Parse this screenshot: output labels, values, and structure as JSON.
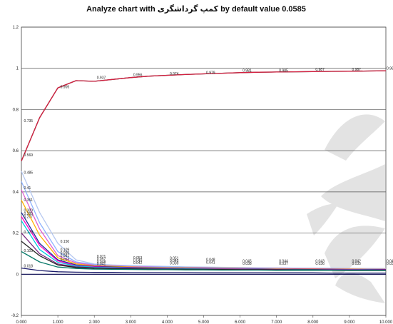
{
  "chart_data": {
    "type": "line",
    "title": "Analyze chart with کمپ گرداشگری by default value 0.0585",
    "xlabel": "",
    "ylabel": "",
    "x_ticks": [
      "0.000",
      "1.000",
      "2.000",
      "3.000",
      "4.000",
      "5.000",
      "6.000",
      "7.000",
      "8.000",
      "9.000",
      "10.000"
    ],
    "y_ticks": [
      "1.2",
      "1",
      "0.8",
      "0.6",
      "0.4",
      "0.2",
      "0",
      "-0.2"
    ],
    "xlim": [
      0,
      10
    ],
    "ylim": [
      -0.2,
      1.2
    ],
    "grid": "horizontal",
    "legend": "none",
    "series": [
      {
        "color": "#222222",
        "x": [
          0,
          0.5,
          1,
          1.5,
          2,
          2.5,
          3,
          3.5,
          4,
          4.5,
          5,
          5.5,
          6,
          6.5,
          7,
          7.5,
          8,
          8.5,
          9,
          9.5,
          10
        ],
        "y": [
          0.55,
          0.76,
          0.905,
          0.94,
          0.937,
          0.946,
          0.955,
          0.962,
          0.966,
          0.97,
          0.973,
          0.976,
          0.979,
          0.981,
          0.982,
          0.983,
          0.984,
          0.985,
          0.986,
          0.987,
          0.988
        ]
      },
      {
        "color": "#d62040",
        "x": [
          0,
          0.5,
          1,
          1.5,
          2,
          2.5,
          3,
          3.5,
          4,
          4.5,
          5,
          5.5,
          6,
          6.5,
          7,
          7.5,
          8,
          8.5,
          9,
          9.5,
          10
        ],
        "y": [
          0.55,
          0.76,
          0.905,
          0.94,
          0.937,
          0.946,
          0.955,
          0.962,
          0.966,
          0.97,
          0.973,
          0.976,
          0.979,
          0.981,
          0.982,
          0.983,
          0.984,
          0.985,
          0.986,
          0.987,
          0.988
        ]
      },
      {
        "color": "#b6c8f0",
        "x": [
          0,
          0.5,
          1,
          1.5,
          2,
          2.5,
          3,
          3.5,
          4,
          4.5,
          5,
          5.5,
          6,
          6.5,
          7,
          7.5,
          8,
          8.5,
          9,
          9.5,
          10
        ],
        "y": [
          0.5,
          0.3,
          0.15,
          0.07,
          0.05,
          0.045,
          0.042,
          0.04,
          0.038,
          0.036,
          0.035,
          0.034,
          0.033,
          0.032,
          0.031,
          0.03,
          0.03,
          0.029,
          0.029,
          0.028,
          0.028
        ]
      },
      {
        "color": "#8fb3ff",
        "x": [
          0,
          0.5,
          1,
          1.5,
          2,
          2.5,
          3,
          3.5,
          4,
          4.5,
          5,
          5.5,
          6,
          6.5,
          7,
          7.5,
          8,
          8.5,
          9,
          9.5,
          10
        ],
        "y": [
          0.45,
          0.25,
          0.11,
          0.06,
          0.047,
          0.042,
          0.039,
          0.037,
          0.035,
          0.034,
          0.033,
          0.032,
          0.031,
          0.03,
          0.029,
          0.029,
          0.028,
          0.028,
          0.027,
          0.027,
          0.026
        ]
      },
      {
        "color": "#e060d0",
        "x": [
          0,
          0.5,
          1,
          1.5,
          2,
          2.5,
          3,
          3.5,
          4,
          4.5,
          5,
          5.5,
          6,
          6.5,
          7,
          7.5,
          8,
          8.5,
          9,
          9.5,
          10
        ],
        "y": [
          0.41,
          0.22,
          0.09,
          0.055,
          0.044,
          0.04,
          0.037,
          0.035,
          0.033,
          0.032,
          0.031,
          0.03,
          0.029,
          0.028,
          0.028,
          0.027,
          0.027,
          0.026,
          0.026,
          0.025,
          0.025
        ]
      },
      {
        "color": "#ffb000",
        "x": [
          0,
          0.5,
          1,
          1.5,
          2,
          2.5,
          3,
          3.5,
          4,
          4.5,
          5,
          5.5,
          6,
          6.5,
          7,
          7.5,
          8,
          8.5,
          9,
          9.5,
          10
        ],
        "y": [
          0.36,
          0.19,
          0.08,
          0.05,
          0.041,
          0.038,
          0.035,
          0.033,
          0.032,
          0.031,
          0.03,
          0.029,
          0.028,
          0.027,
          0.027,
          0.026,
          0.026,
          0.025,
          0.025,
          0.024,
          0.024
        ]
      },
      {
        "color": "#1f2d9a",
        "x": [
          0,
          0.5,
          1,
          1.5,
          2,
          2.5,
          3,
          3.5,
          4,
          4.5,
          5,
          5.5,
          6,
          6.5,
          7,
          7.5,
          8,
          8.5,
          9,
          9.5,
          10
        ],
        "y": [
          0.3,
          0.15,
          0.07,
          0.045,
          0.038,
          0.035,
          0.033,
          0.031,
          0.03,
          0.029,
          0.028,
          0.027,
          0.026,
          0.026,
          0.025,
          0.025,
          0.024,
          0.024,
          0.023,
          0.023,
          0.023
        ]
      },
      {
        "color": "#ff00c8",
        "x": [
          0,
          0.5,
          1,
          1.5,
          2,
          2.5,
          3,
          3.5,
          4,
          4.5,
          5,
          5.5,
          6,
          6.5,
          7,
          7.5,
          8,
          8.5,
          9,
          9.5,
          10
        ],
        "y": [
          0.28,
          0.14,
          0.065,
          0.042,
          0.036,
          0.033,
          0.031,
          0.03,
          0.029,
          0.028,
          0.027,
          0.026,
          0.026,
          0.025,
          0.025,
          0.024,
          0.024,
          0.023,
          0.023,
          0.022,
          0.022
        ]
      },
      {
        "color": "#00c8e0",
        "x": [
          0,
          0.5,
          1,
          1.5,
          2,
          2.5,
          3,
          3.5,
          4,
          4.5,
          5,
          5.5,
          6,
          6.5,
          7,
          7.5,
          8,
          8.5,
          9,
          9.5,
          10
        ],
        "y": [
          0.26,
          0.12,
          0.058,
          0.04,
          0.034,
          0.032,
          0.03,
          0.029,
          0.028,
          0.027,
          0.026,
          0.025,
          0.025,
          0.024,
          0.024,
          0.023,
          0.023,
          0.022,
          0.022,
          0.022,
          0.021
        ]
      },
      {
        "color": "#7a2a80",
        "x": [
          0,
          0.5,
          1,
          1.5,
          2,
          2.5,
          3,
          3.5,
          4,
          4.5,
          5,
          5.5,
          6,
          6.5,
          7,
          7.5,
          8,
          8.5,
          9,
          9.5,
          10
        ],
        "y": [
          0.2,
          0.1,
          0.05,
          0.036,
          0.031,
          0.029,
          0.028,
          0.027,
          0.026,
          0.025,
          0.025,
          0.024,
          0.024,
          0.023,
          0.023,
          0.022,
          0.022,
          0.022,
          0.021,
          0.021,
          0.021
        ]
      },
      {
        "color": "#222222",
        "x": [
          0,
          0.5,
          1,
          1.5,
          2,
          2.5,
          3,
          3.5,
          4,
          4.5,
          5,
          5.5,
          6,
          6.5,
          7,
          7.5,
          8,
          8.5,
          9,
          9.5,
          10
        ],
        "y": [
          0.16,
          0.09,
          0.045,
          0.033,
          0.029,
          0.027,
          0.026,
          0.025,
          0.024,
          0.024,
          0.023,
          0.023,
          0.022,
          0.022,
          0.021,
          0.021,
          0.021,
          0.02,
          0.02,
          0.02,
          0.02
        ]
      },
      {
        "color": "#0a7a6a",
        "x": [
          0,
          0.5,
          1,
          1.5,
          2,
          2.5,
          3,
          3.5,
          4,
          4.5,
          5,
          5.5,
          6,
          6.5,
          7,
          7.5,
          8,
          8.5,
          9,
          9.5,
          10
        ],
        "y": [
          0.11,
          0.06,
          0.035,
          0.028,
          0.025,
          0.024,
          0.023,
          0.022,
          0.022,
          0.021,
          0.021,
          0.02,
          0.02,
          0.02,
          0.019,
          0.019,
          0.019,
          0.019,
          0.018,
          0.018,
          0.018
        ]
      },
      {
        "color": "#1a1a6a",
        "x": [
          0,
          0.5,
          1,
          1.5,
          2,
          2.5,
          3,
          3.5,
          4,
          4.5,
          5,
          5.5,
          6,
          6.5,
          7,
          7.5,
          8,
          8.5,
          9,
          9.5,
          10
        ],
        "y": [
          0.03,
          0.018,
          0.012,
          0.01,
          0.009,
          0.009,
          0.008,
          0.008,
          0.008,
          0.008,
          0.007,
          0.007,
          0.007,
          0.007,
          0.007,
          0.007,
          0.007,
          0.006,
          0.006,
          0.006,
          0.006
        ]
      }
    ],
    "data_labels": [
      {
        "x": 0.05,
        "y": 0.735,
        "text": "0.735"
      },
      {
        "x": 0.05,
        "y": 0.569,
        "text": "0.569"
      },
      {
        "x": 0.05,
        "y": 0.485,
        "text": "0.485"
      },
      {
        "x": 0.05,
        "y": 0.41,
        "text": "0.41"
      },
      {
        "x": 0.05,
        "y": 0.351,
        "text": "0.351"
      },
      {
        "x": 0.05,
        "y": 0.3,
        "text": "0.300"
      },
      {
        "x": 0.05,
        "y": 0.285,
        "text": "0.285"
      },
      {
        "x": 0.05,
        "y": 0.27,
        "text": "0.277"
      },
      {
        "x": 0.05,
        "y": 0.195,
        "text": "0.178"
      },
      {
        "x": 0.05,
        "y": 0.105,
        "text": "0.103"
      },
      {
        "x": 0.05,
        "y": 0.03,
        "text": "0.018"
      },
      {
        "x": 1.05,
        "y": 0.9,
        "text": "0.905"
      },
      {
        "x": 1.05,
        "y": 0.15,
        "text": "0.150"
      },
      {
        "x": 1.05,
        "y": 0.11,
        "text": "0.109"
      },
      {
        "x": 1.05,
        "y": 0.095,
        "text": "0.095"
      },
      {
        "x": 1.05,
        "y": 0.08,
        "text": "0.081"
      },
      {
        "x": 1.05,
        "y": 0.063,
        "text": "0.063"
      },
      {
        "x": 2.05,
        "y": 0.945,
        "text": "0.937"
      },
      {
        "x": 2.05,
        "y": 0.078,
        "text": "0.071"
      },
      {
        "x": 2.05,
        "y": 0.065,
        "text": "0.057"
      },
      {
        "x": 2.05,
        "y": 0.052,
        "text": "0.048"
      },
      {
        "x": 2.05,
        "y": 0.04,
        "text": "0.041"
      },
      {
        "x": 3.05,
        "y": 0.96,
        "text": "0.956"
      },
      {
        "x": 3.05,
        "y": 0.07,
        "text": "0.053"
      },
      {
        "x": 3.05,
        "y": 0.058,
        "text": "0.049"
      },
      {
        "x": 3.05,
        "y": 0.046,
        "text": "0.042"
      },
      {
        "x": 4.05,
        "y": 0.965,
        "text": "0.974"
      },
      {
        "x": 4.05,
        "y": 0.068,
        "text": "0.051"
      },
      {
        "x": 4.05,
        "y": 0.056,
        "text": "0.045"
      },
      {
        "x": 4.05,
        "y": 0.044,
        "text": "0.039"
      },
      {
        "x": 5.05,
        "y": 0.97,
        "text": "0.979"
      },
      {
        "x": 5.05,
        "y": 0.062,
        "text": "0.048"
      },
      {
        "x": 5.05,
        "y": 0.048,
        "text": "0.041"
      },
      {
        "x": 6.05,
        "y": 0.98,
        "text": "0.981"
      },
      {
        "x": 6.05,
        "y": 0.055,
        "text": "0.045"
      },
      {
        "x": 6.05,
        "y": 0.042,
        "text": "0.038"
      },
      {
        "x": 7.05,
        "y": 0.98,
        "text": "0.985"
      },
      {
        "x": 7.05,
        "y": 0.055,
        "text": "0.044"
      },
      {
        "x": 7.05,
        "y": 0.042,
        "text": "0.037"
      },
      {
        "x": 8.05,
        "y": 0.985,
        "text": "0.987"
      },
      {
        "x": 8.05,
        "y": 0.055,
        "text": "0.043"
      },
      {
        "x": 8.05,
        "y": 0.042,
        "text": "0.036"
      },
      {
        "x": 9.05,
        "y": 0.985,
        "text": "0.987"
      },
      {
        "x": 9.05,
        "y": 0.055,
        "text": "0.042"
      },
      {
        "x": 9.05,
        "y": 0.042,
        "text": "0.035"
      },
      {
        "x": 10.0,
        "y": 0.99,
        "text": "0.988"
      },
      {
        "x": 10.0,
        "y": 0.055,
        "text": "0.041"
      },
      {
        "x": 10.0,
        "y": 0.042,
        "text": "0.034"
      }
    ]
  }
}
